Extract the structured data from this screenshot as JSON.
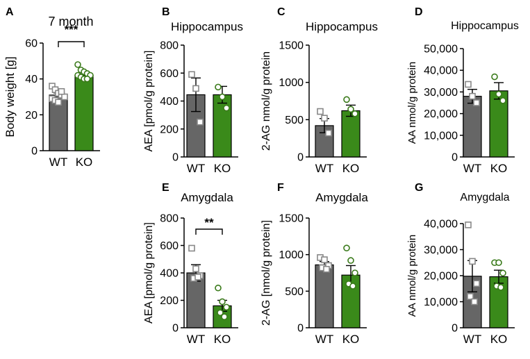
{
  "colors": {
    "wt": "#666666",
    "ko": "#3a8a1a",
    "wt_point": "#888888",
    "ko_point": "#3a7a1a",
    "axis": "#000000"
  },
  "chart_data": [
    {
      "panel": "A",
      "type": "bar",
      "title": "7 month",
      "ylabel": "Body weight [g]",
      "categories": [
        "WT",
        "KO"
      ],
      "ylim": [
        0,
        60
      ],
      "yticks": [
        "0",
        "20",
        "40",
        "60"
      ],
      "values": [
        31,
        42
      ],
      "sem": [
        1.2,
        1.3
      ],
      "points": [
        [
          36,
          34,
          32,
          31,
          30,
          29,
          28,
          27,
          33
        ],
        [
          48,
          45,
          44,
          43,
          42,
          42,
          41,
          40,
          40
        ]
      ],
      "significance": "***"
    },
    {
      "panel": "B",
      "type": "bar",
      "title": "Hippocampus",
      "ylabel": "AEA [pmol/g protein]",
      "categories": [
        "WT",
        "KO"
      ],
      "ylim": [
        0,
        800
      ],
      "yticks": [
        "0",
        "200",
        "400",
        "600",
        "800"
      ],
      "values": [
        445,
        445
      ],
      "sem": [
        120,
        60
      ],
      "points": [
        [
          590,
          490,
          250
        ],
        [
          500,
          430,
          350
        ]
      ]
    },
    {
      "panel": "C",
      "type": "bar",
      "title": "Hippocampus",
      "ylabel": "2-AG nmol/g protein",
      "categories": [
        "WT",
        "KO"
      ],
      "ylim": [
        0,
        1500
      ],
      "yticks": [
        "0",
        "500",
        "1000",
        "1500"
      ],
      "values": [
        420,
        620
      ],
      "sem": [
        95,
        75
      ],
      "points": [
        [
          610,
          520,
          320
        ],
        [
          770,
          640,
          580
        ]
      ]
    },
    {
      "panel": "D",
      "type": "bar",
      "title": "Hippocampus",
      "ylabel": "AA nmol/g protein",
      "categories": [
        "WT",
        "KO"
      ],
      "ylim": [
        0,
        50000
      ],
      "yticks": [
        "0",
        "10,000",
        "20,000",
        "30,000",
        "40,000",
        "50,000"
      ],
      "values": [
        28000,
        30500
      ],
      "sem": [
        3200,
        3800
      ],
      "points": [
        [
          33500,
          28000,
          25000
        ],
        [
          37000,
          29000,
          26000
        ]
      ]
    },
    {
      "panel": "E",
      "type": "bar",
      "title": "Amygdala",
      "ylabel": "AEA [pmol/g protein]",
      "categories": [
        "WT",
        "KO"
      ],
      "ylim": [
        0,
        800
      ],
      "yticks": [
        "0",
        "200",
        "400",
        "600",
        "800"
      ],
      "values": [
        400,
        160
      ],
      "sem": [
        60,
        40
      ],
      "points": [
        [
          580,
          430,
          380,
          360,
          370
        ],
        [
          290,
          190,
          150,
          110,
          80
        ]
      ],
      "significance": "**"
    },
    {
      "panel": "F",
      "type": "bar",
      "title": "Amygdala",
      "ylabel": "2-AG [nmol/g protein]",
      "categories": [
        "WT",
        "KO"
      ],
      "ylim": [
        0,
        1500
      ],
      "yticks": [
        "0",
        "500",
        "1000",
        "1500"
      ],
      "values": [
        860,
        720
      ],
      "sem": [
        45,
        130
      ],
      "points": [
        [
          960,
          930,
          850,
          820,
          800
        ],
        [
          1090,
          920,
          750,
          600,
          570
        ]
      ]
    },
    {
      "panel": "G",
      "type": "bar",
      "title": "Amygdala",
      "ylabel": "AA nmol/g protein",
      "categories": [
        "WT",
        "KO"
      ],
      "ylim": [
        0,
        40000
      ],
      "yticks": [
        "0",
        "10,000",
        "20,000",
        "30,000",
        "40,000"
      ],
      "values": [
        19800,
        19600
      ],
      "sem": [
        6000,
        2500
      ],
      "points": [
        [
          39500,
          25500,
          17000,
          12000,
          10000
        ],
        [
          25000,
          25000,
          21000,
          16000,
          15500
        ]
      ]
    }
  ]
}
